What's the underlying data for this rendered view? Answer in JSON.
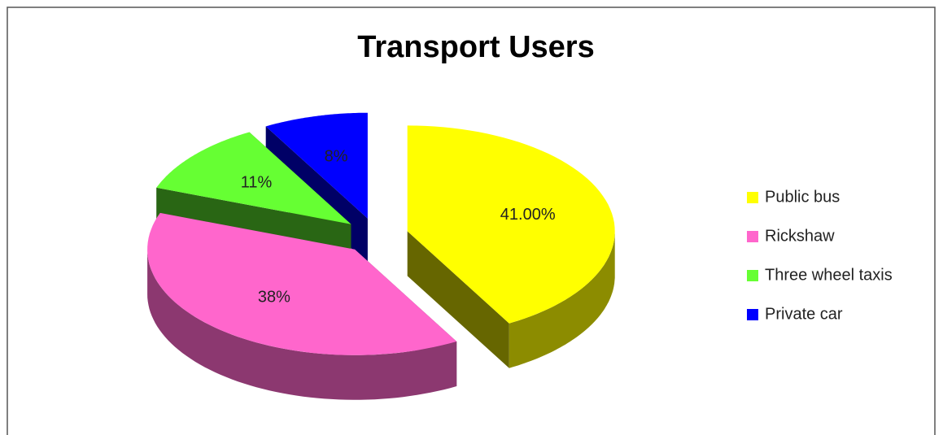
{
  "chart_data": {
    "type": "pie",
    "title": "Transport Users",
    "categories": [
      "Public bus",
      "Rickshaw",
      "Three wheel taxis",
      "Private car"
    ],
    "values": [
      41,
      38,
      11,
      8
    ],
    "value_labels": [
      "41.00%",
      "38%",
      "11%",
      "8%"
    ],
    "colors": [
      "#ffff00",
      "#ff66cc",
      "#66ff33",
      "#0000ff"
    ],
    "legend": "right"
  }
}
